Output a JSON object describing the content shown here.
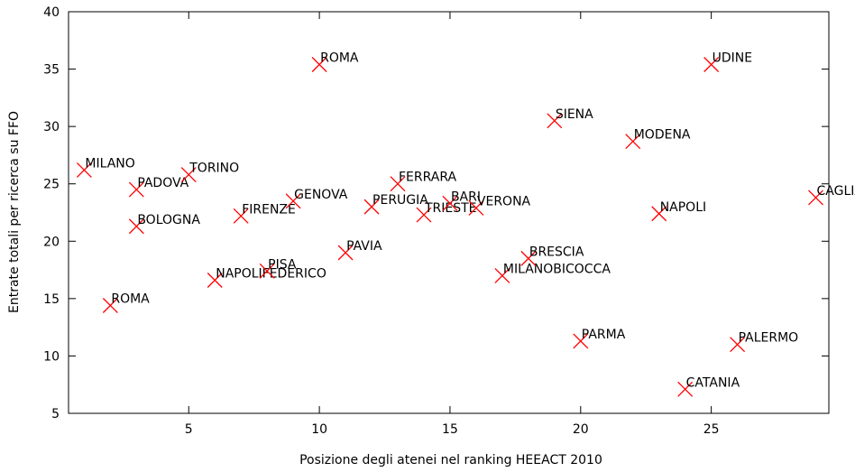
{
  "chart_data": {
    "type": "scatter",
    "xlabel": "Posizione degli atenei nel ranking HEEACT 2010",
    "ylabel": "Entrate totali per ricerca su FFO",
    "xlim": [
      0.4,
      29.5
    ],
    "ylim": [
      5,
      40
    ],
    "xticks": [
      5,
      10,
      15,
      20,
      25
    ],
    "yticks": [
      5,
      10,
      15,
      20,
      25,
      30,
      35,
      40
    ],
    "series": [
      {
        "color": "#ff0000",
        "x": [
          1,
          2,
          3,
          3,
          5,
          6,
          7,
          8,
          9,
          10,
          11,
          12,
          13,
          14,
          15,
          16,
          17,
          18,
          19,
          20,
          22,
          23,
          24,
          25,
          26,
          29
        ],
        "values": [
          26.2,
          14.4,
          24.5,
          21.3,
          25.8,
          16.6,
          22.2,
          17.4,
          23.5,
          35.4,
          19,
          23,
          25,
          22.3,
          23.3,
          22.9,
          17,
          18.5,
          30.5,
          11.3,
          28.7,
          22.4,
          7.1,
          35.4,
          11,
          23.8
        ],
        "labels": [
          "MILANO",
          "ROMA",
          "PADOVA",
          "BOLOGNA",
          "TORINO",
          "NAPOLIFEDERICO",
          "FIRENZE",
          "PISA",
          "GENOVA",
          "ROMA",
          "PAVIA",
          "PERUGIA",
          "FERRARA",
          "TRIESTE",
          "BARI",
          "VERONA",
          "MILANOBICOCCA",
          "BRESCIA",
          "SIENA",
          "PARMA",
          "MODENA",
          "NAPOLI",
          "CATANIA",
          "UDINE",
          "PALERMO",
          "CAGLIARI"
        ]
      }
    ]
  }
}
